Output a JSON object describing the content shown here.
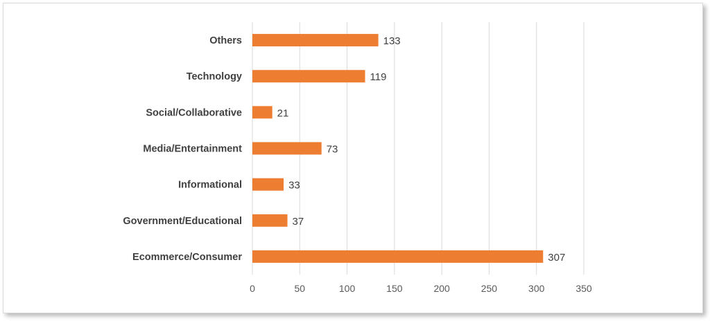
{
  "chart_data": {
    "type": "bar",
    "orientation": "horizontal",
    "categories": [
      "Others",
      "Technology",
      "Social/Collaborative",
      "Media/Entertainment",
      "Informational",
      "Government/Educational",
      "Ecommerce/Consumer"
    ],
    "values": [
      133,
      119,
      21,
      73,
      33,
      37,
      307
    ],
    "data_labels": [
      "133",
      "119",
      "21",
      "73",
      "33",
      "37",
      "307"
    ],
    "xlim": [
      0,
      350
    ],
    "x_ticks": [
      0,
      50,
      100,
      150,
      200,
      250,
      300,
      350
    ],
    "x_tick_labels": [
      "0",
      "50",
      "100",
      "150",
      "200",
      "250",
      "300",
      "350"
    ],
    "title": "",
    "xlabel": "",
    "ylabel": "",
    "grid": "vertical",
    "legend": "none",
    "bar_color": "#ED7D31",
    "grid_color": "#d9d9d9"
  }
}
